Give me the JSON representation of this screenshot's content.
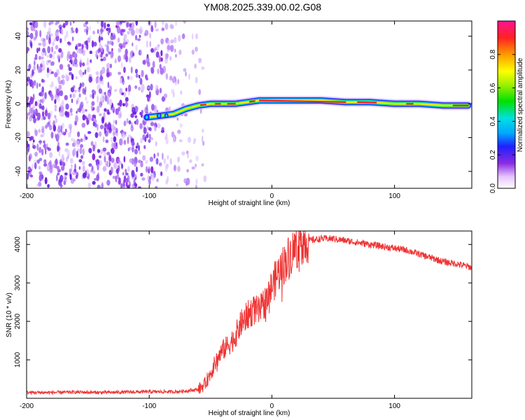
{
  "title": "YM08.2025.339.00.02.G08",
  "chart_data": [
    {
      "type": "heatmap",
      "xlabel": "Height of straight line (km)",
      "ylabel": "Frequency (Hz)",
      "xlim": [
        -200,
        163
      ],
      "ylim": [
        -50,
        49
      ],
      "xticks": [
        -200,
        -100,
        0,
        100
      ],
      "yticks": [
        -40,
        -20,
        0,
        20,
        40
      ],
      "noise_region": {
        "x": [
          -200,
          -60
        ],
        "frequency": [
          -50,
          49
        ]
      },
      "signal_trace": {
        "x": [
          -102,
          -90,
          -80,
          -70,
          -60,
          -50,
          -40,
          -30,
          -20,
          -10,
          0,
          20,
          40,
          60,
          80,
          100,
          120,
          140,
          160
        ],
        "frequency": [
          -8,
          -7,
          -6,
          -3,
          -1,
          0,
          0,
          0,
          1,
          2,
          2,
          2,
          2,
          1,
          1,
          0,
          0,
          -1,
          -1
        ]
      },
      "colorbar": {
        "label": "Normalized spectral amplitude",
        "range": [
          0,
          1
        ],
        "ticks": [
          "0.0",
          "0.2",
          "0.4",
          "0.6",
          "0.8"
        ]
      }
    },
    {
      "type": "line",
      "xlabel": "Height of straight line (km)",
      "ylabel": "SNR (10 * v/v)",
      "xlim": [
        -200,
        163
      ],
      "ylim": [
        0,
        4350
      ],
      "xticks": [
        -200,
        -100,
        0,
        100
      ],
      "yticks": [
        1000,
        2000,
        3000,
        4000
      ],
      "series": [
        {
          "name": "SNR",
          "color": "#ee3333",
          "x": [
            -200,
            -180,
            -160,
            -140,
            -120,
            -100,
            -80,
            -70,
            -60,
            -55,
            -50,
            -45,
            -40,
            -35,
            -30,
            -25,
            -20,
            -15,
            -10,
            -5,
            0,
            5,
            10,
            15,
            20,
            25,
            30,
            40,
            50,
            60,
            70,
            80,
            90,
            100,
            110,
            120,
            130,
            140,
            150,
            163
          ],
          "values": [
            150,
            150,
            160,
            150,
            160,
            170,
            170,
            190,
            230,
            350,
            650,
            1000,
            1250,
            1400,
            1600,
            1950,
            2150,
            2300,
            2250,
            2550,
            2900,
            3250,
            3500,
            3750,
            3950,
            4100,
            4100,
            4150,
            4150,
            4100,
            4050,
            4000,
            3950,
            3900,
            3850,
            3750,
            3650,
            3550,
            3500,
            3400
          ]
        }
      ]
    }
  ]
}
